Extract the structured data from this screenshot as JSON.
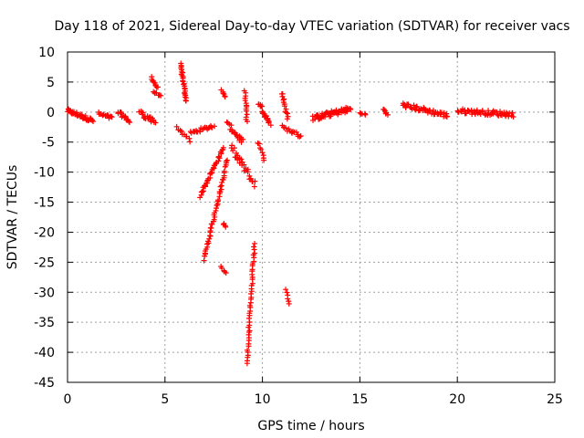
{
  "chart_data": {
    "type": "scatter",
    "title": "Day 118 of 2021, Sidereal Day-to-day VTEC variation (SDTVAR) for receiver vacs",
    "xlabel": "GPS time / hours",
    "ylabel": "SDTVAR / TECUs",
    "xlim": [
      0,
      25
    ],
    "ylim": [
      -45,
      10
    ],
    "xticks": [
      0,
      5,
      10,
      15,
      20,
      25
    ],
    "yticks": [
      10,
      5,
      0,
      -5,
      -10,
      -15,
      -20,
      -25,
      -30,
      -35,
      -40,
      -45
    ],
    "grid": true,
    "marker": "+",
    "color": "#ff0000",
    "series": [
      {
        "name": "sdtvar",
        "segments": [
          {
            "x": [
              0.0,
              1.3
            ],
            "y": [
              0.2,
              -1.4
            ],
            "jitter": 0.7,
            "n": 40
          },
          {
            "x": [
              1.6,
              2.3
            ],
            "y": [
              -0.3,
              -1.0
            ],
            "jitter": 0.6,
            "n": 16
          },
          {
            "x": [
              2.6,
              3.2
            ],
            "y": [
              0.0,
              -1.6
            ],
            "jitter": 0.6,
            "n": 16
          },
          {
            "x": [
              3.7,
              4.5
            ],
            "y": [
              0.0,
              -1.8
            ],
            "jitter": 0.9,
            "n": 22
          },
          {
            "x": [
              4.3,
              4.6
            ],
            "y": [
              5.8,
              4.0
            ],
            "jitter": 0.4,
            "n": 10
          },
          {
            "x": [
              4.4,
              4.8
            ],
            "y": [
              3.4,
              2.6
            ],
            "jitter": 0.3,
            "n": 8
          },
          {
            "x": [
              5.8,
              6.1
            ],
            "y": [
              8.0,
              1.8
            ],
            "jitter": 0.2,
            "n": 26
          },
          {
            "x": [
              5.6,
              6.3
            ],
            "y": [
              -2.5,
              -4.8
            ],
            "jitter": 0.5,
            "n": 10
          },
          {
            "x": [
              6.3,
              7.5
            ],
            "y": [
              -3.5,
              -2.3
            ],
            "jitter": 0.6,
            "n": 22
          },
          {
            "x": [
              6.8,
              8.0
            ],
            "y": [
              -14.0,
              -6.0
            ],
            "jitter": 0.5,
            "n": 38
          },
          {
            "x": [
              7.0,
              8.2
            ],
            "y": [
              -24.5,
              -8.0
            ],
            "jitter": 0.5,
            "n": 50
          },
          {
            "x": [
              7.9,
              8.1
            ],
            "y": [
              3.6,
              2.6
            ],
            "jitter": 0.3,
            "n": 6
          },
          {
            "x": [
              8.0,
              8.1
            ],
            "y": [
              -18.5,
              -19.2
            ],
            "jitter": 0.2,
            "n": 4
          },
          {
            "x": [
              7.9,
              8.1
            ],
            "y": [
              -25.8,
              -26.8
            ],
            "jitter": 0.3,
            "n": 5
          },
          {
            "x": [
              8.2,
              9.0
            ],
            "y": [
              -2.0,
              -5.0
            ],
            "jitter": 0.9,
            "n": 20
          },
          {
            "x": [
              8.4,
              9.6
            ],
            "y": [
              -6.0,
              -12.0
            ],
            "jitter": 1.4,
            "n": 30
          },
          {
            "x": [
              9.1,
              9.2
            ],
            "y": [
              3.5,
              -1.5
            ],
            "jitter": 0.3,
            "n": 14
          },
          {
            "x": [
              9.2,
              9.6
            ],
            "y": [
              -41.8,
              -22.0
            ],
            "jitter": 0.3,
            "n": 44
          },
          {
            "x": [
              9.8,
              10.4
            ],
            "y": [
              1.6,
              -2.0
            ],
            "jitter": 0.8,
            "n": 20
          },
          {
            "x": [
              9.8,
              10.1
            ],
            "y": [
              -5.0,
              -8.0
            ],
            "jitter": 0.4,
            "n": 8
          },
          {
            "x": [
              11.0,
              11.3
            ],
            "y": [
              3.2,
              -1.0
            ],
            "jitter": 0.4,
            "n": 14
          },
          {
            "x": [
              11.0,
              12.0
            ],
            "y": [
              -2.5,
              -4.0
            ],
            "jitter": 0.6,
            "n": 16
          },
          {
            "x": [
              11.2,
              11.4
            ],
            "y": [
              -29.5,
              -32.0
            ],
            "jitter": 0.2,
            "n": 6
          },
          {
            "x": [
              12.6,
              14.5
            ],
            "y": [
              -1.0,
              0.5
            ],
            "jitter": 0.9,
            "n": 60
          },
          {
            "x": [
              15.0,
              15.3
            ],
            "y": [
              -0.2,
              -0.3
            ],
            "jitter": 0.3,
            "n": 5
          },
          {
            "x": [
              16.2,
              16.4
            ],
            "y": [
              0.5,
              -0.5
            ],
            "jitter": 0.4,
            "n": 6
          },
          {
            "x": [
              17.2,
              19.5
            ],
            "y": [
              1.2,
              -0.6
            ],
            "jitter": 0.8,
            "n": 50
          },
          {
            "x": [
              20.0,
              22.9
            ],
            "y": [
              0.2,
              -0.4
            ],
            "jitter": 0.8,
            "n": 60
          }
        ]
      }
    ]
  }
}
